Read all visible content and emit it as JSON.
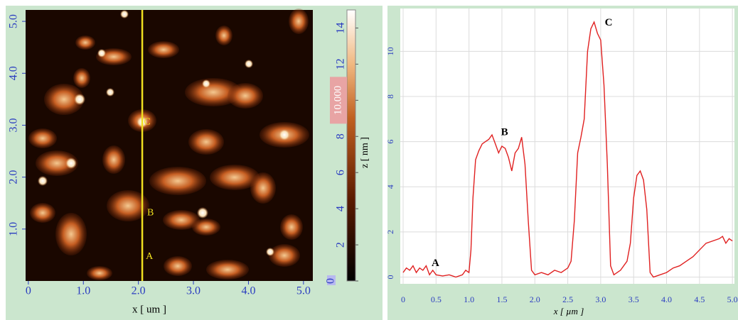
{
  "chart_data": [
    {
      "type": "image",
      "xlabel": "x [ um ]",
      "xlim": [
        -0.05,
        5.17
      ],
      "xticks": [
        {
          "value": 0,
          "label": "0"
        },
        {
          "value": 1,
          "label": "1.0"
        },
        {
          "value": 2,
          "label": "2.0"
        },
        {
          "value": 3,
          "label": "3.0"
        },
        {
          "value": 4,
          "label": "4.0"
        },
        {
          "value": 5,
          "label": "5.0"
        }
      ],
      "ylim": [
        0,
        5.22
      ],
      "yticks": [
        {
          "value": 1,
          "label": "1.0"
        },
        {
          "value": 2,
          "label": "2.0"
        },
        {
          "value": 3,
          "label": "3.0"
        },
        {
          "value": 4,
          "label": "4.0"
        },
        {
          "value": 5,
          "label": "5.0"
        }
      ],
      "profile_x": 2.07,
      "profile_color": "#f0e020",
      "colorbar": {
        "label": "z [ nm ]",
        "lim": [
          0,
          15
        ],
        "ticks": [
          0,
          2,
          4,
          6,
          8,
          10,
          12,
          14
        ],
        "marker": {
          "value": 10,
          "label": "10.000"
        }
      },
      "annotations": [
        {
          "text": "A",
          "x": 2.2,
          "y": 0.47
        },
        {
          "text": "B",
          "x": 2.22,
          "y": 1.31
        },
        {
          "text": "C",
          "x": 2.16,
          "y": 3.06
        }
      ]
    },
    {
      "type": "line",
      "xlabel": "x [ µm ]",
      "color": "#e02020",
      "xlim": [
        0,
        5.02
      ],
      "xticks": [
        0,
        0.5,
        {
          "value": 1,
          "label": "1.0"
        },
        1.5,
        {
          "value": 2,
          "label": "2.0"
        },
        2.5,
        {
          "value": 3,
          "label": "3.0"
        },
        3.5,
        {
          "value": 4,
          "label": "4.0"
        },
        4.5,
        {
          "value": 5,
          "label": "5.0"
        }
      ],
      "ylim": [
        -0.3,
        11.9
      ],
      "yticks": [
        0,
        2,
        4,
        6,
        8,
        10
      ],
      "grid": true,
      "x": [
        0,
        0.05,
        0.1,
        0.15,
        0.2,
        0.25,
        0.3,
        0.35,
        0.4,
        0.45,
        0.5,
        0.6,
        0.7,
        0.8,
        0.9,
        0.95,
        1.0,
        1.03,
        1.06,
        1.1,
        1.15,
        1.2,
        1.25,
        1.3,
        1.35,
        1.4,
        1.45,
        1.5,
        1.55,
        1.6,
        1.65,
        1.7,
        1.75,
        1.8,
        1.85,
        1.9,
        1.95,
        2.0,
        2.1,
        2.2,
        2.3,
        2.4,
        2.5,
        2.55,
        2.6,
        2.65,
        2.7,
        2.75,
        2.8,
        2.85,
        2.9,
        2.95,
        3.0,
        3.05,
        3.1,
        3.15,
        3.2,
        3.3,
        3.4,
        3.45,
        3.5,
        3.55,
        3.6,
        3.65,
        3.7,
        3.75,
        3.8,
        3.9,
        4.0,
        4.1,
        4.2,
        4.3,
        4.4,
        4.5,
        4.6,
        4.7,
        4.8,
        4.85,
        4.9,
        4.95,
        5.0
      ],
      "values": [
        0.2,
        0.4,
        0.3,
        0.5,
        0.2,
        0.4,
        0.3,
        0.5,
        0.1,
        0.3,
        0.1,
        0.05,
        0.1,
        0.0,
        0.1,
        0.3,
        0.2,
        1.2,
        3.5,
        5.2,
        5.6,
        5.9,
        6.0,
        6.1,
        6.3,
        5.9,
        5.5,
        5.8,
        5.7,
        5.3,
        4.7,
        5.5,
        5.7,
        6.2,
        5.0,
        2.5,
        0.3,
        0.1,
        0.2,
        0.1,
        0.3,
        0.2,
        0.4,
        0.7,
        2.5,
        5.5,
        6.2,
        7.0,
        10.0,
        11.0,
        11.3,
        10.8,
        10.5,
        8.5,
        5.0,
        0.5,
        0.1,
        0.3,
        0.7,
        1.5,
        3.5,
        4.5,
        4.7,
        4.3,
        3.0,
        0.2,
        0.0,
        0.1,
        0.2,
        0.4,
        0.5,
        0.7,
        0.9,
        1.2,
        1.5,
        1.6,
        1.7,
        1.8,
        1.5,
        1.7,
        1.6
      ],
      "annotations": [
        {
          "text": "A",
          "x": 0.49,
          "y": 0.6
        },
        {
          "text": "B",
          "x": 1.54,
          "y": 6.4
        },
        {
          "text": "C",
          "x": 3.12,
          "y": 11.25
        }
      ]
    }
  ]
}
